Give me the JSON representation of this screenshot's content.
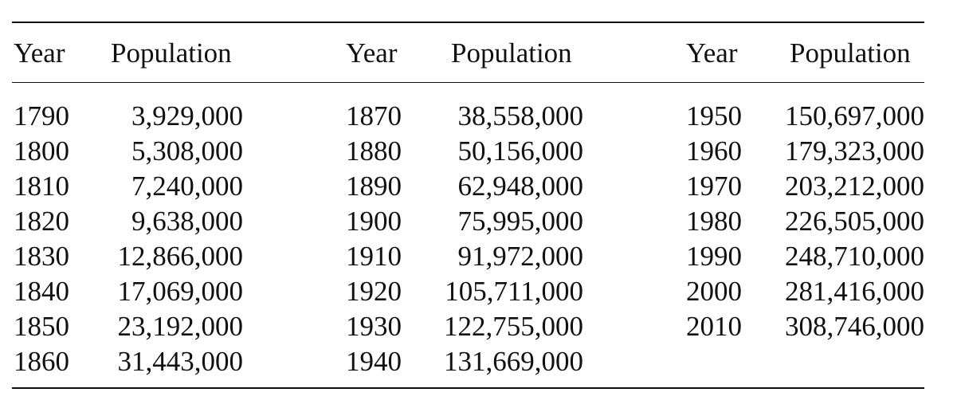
{
  "table": {
    "headers": [
      {
        "year": "Year",
        "population": "Population"
      },
      {
        "year": "Year",
        "population": "Population"
      },
      {
        "year": "Year",
        "population": "Population"
      }
    ],
    "groups": [
      {
        "rows": [
          {
            "year": "1790",
            "population": "3,929,000"
          },
          {
            "year": "1800",
            "population": "5,308,000"
          },
          {
            "year": "1810",
            "population": "7,240,000"
          },
          {
            "year": "1820",
            "population": "9,638,000"
          },
          {
            "year": "1830",
            "population": "12,866,000"
          },
          {
            "year": "1840",
            "population": "17,069,000"
          },
          {
            "year": "1850",
            "population": "23,192,000"
          },
          {
            "year": "1860",
            "population": "31,443,000"
          }
        ]
      },
      {
        "rows": [
          {
            "year": "1870",
            "population": "38,558,000"
          },
          {
            "year": "1880",
            "population": "50,156,000"
          },
          {
            "year": "1890",
            "population": "62,948,000"
          },
          {
            "year": "1900",
            "population": "75,995,000"
          },
          {
            "year": "1910",
            "population": "91,972,000"
          },
          {
            "year": "1920",
            "population": "105,711,000"
          },
          {
            "year": "1930",
            "population": "122,755,000"
          },
          {
            "year": "1940",
            "population": "131,669,000"
          }
        ]
      },
      {
        "rows": [
          {
            "year": "1950",
            "population": "150,697,000"
          },
          {
            "year": "1960",
            "population": "179,323,000"
          },
          {
            "year": "1970",
            "population": "203,212,000"
          },
          {
            "year": "1980",
            "population": "226,505,000"
          },
          {
            "year": "1990",
            "population": "248,710,000"
          },
          {
            "year": "2000",
            "population": "281,416,000"
          },
          {
            "year": "2010",
            "population": "308,746,000"
          }
        ]
      }
    ]
  }
}
